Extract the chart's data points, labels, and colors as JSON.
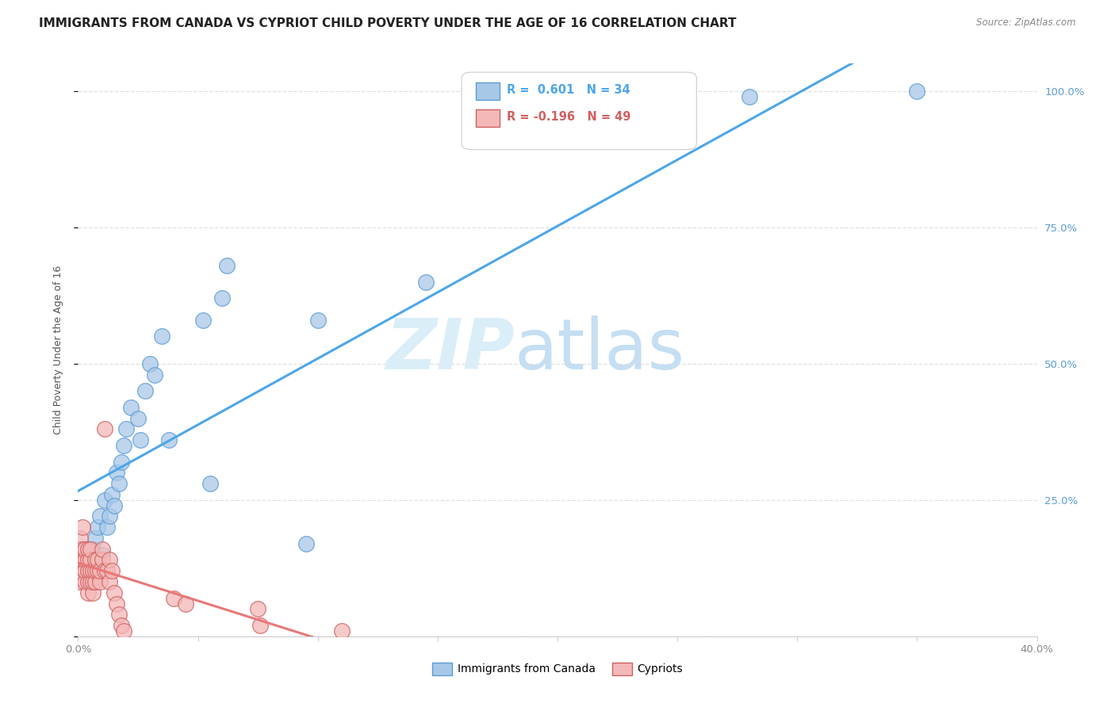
{
  "title": "IMMIGRANTS FROM CANADA VS CYPRIOT CHILD POVERTY UNDER THE AGE OF 16 CORRELATION CHART",
  "source": "Source: ZipAtlas.com",
  "ylabel": "Child Poverty Under the Age of 16",
  "xmin": 0.0,
  "xmax": 0.4,
  "ymin": 0.0,
  "ymax": 1.05,
  "ytick_positions": [
    0.0,
    0.25,
    0.5,
    0.75,
    1.0
  ],
  "ytick_labels_right": [
    "",
    "25.0%",
    "50.0%",
    "75.0%",
    "100.0%"
  ],
  "xtick_positions": [
    0.0,
    0.05,
    0.1,
    0.15,
    0.2,
    0.25,
    0.3,
    0.35,
    0.4
  ],
  "xtick_labels": [
    "0.0%",
    "",
    "",
    "",
    "",
    "",
    "",
    "",
    "40.0%"
  ],
  "blue_R": 0.601,
  "blue_N": 34,
  "pink_R": -0.196,
  "pink_N": 49,
  "blue_label": "Immigrants from Canada",
  "pink_label": "Cypriots",
  "blue_face_color": "#a8c8e8",
  "blue_edge_color": "#5b9bd5",
  "pink_face_color": "#f4b8b8",
  "pink_edge_color": "#d06060",
  "blue_line_color": "#4da6e8",
  "pink_line_color": "#e87878",
  "blue_scatter_x": [
    0.004,
    0.005,
    0.006,
    0.007,
    0.008,
    0.009,
    0.01,
    0.011,
    0.012,
    0.013,
    0.014,
    0.015,
    0.016,
    0.017,
    0.018,
    0.019,
    0.02,
    0.022,
    0.025,
    0.026,
    0.028,
    0.03,
    0.032,
    0.035,
    0.038,
    0.052,
    0.055,
    0.06,
    0.062,
    0.095,
    0.1,
    0.145,
    0.28,
    0.35
  ],
  "blue_scatter_y": [
    0.14,
    0.12,
    0.16,
    0.18,
    0.2,
    0.22,
    0.15,
    0.25,
    0.2,
    0.22,
    0.26,
    0.24,
    0.3,
    0.28,
    0.32,
    0.35,
    0.38,
    0.42,
    0.4,
    0.36,
    0.45,
    0.5,
    0.48,
    0.55,
    0.36,
    0.58,
    0.28,
    0.62,
    0.68,
    0.17,
    0.58,
    0.65,
    0.99,
    1.0
  ],
  "pink_scatter_x": [
    0.0,
    0.0,
    0.001,
    0.001,
    0.001,
    0.002,
    0.002,
    0.002,
    0.003,
    0.003,
    0.003,
    0.003,
    0.004,
    0.004,
    0.004,
    0.004,
    0.004,
    0.005,
    0.005,
    0.005,
    0.005,
    0.006,
    0.006,
    0.006,
    0.007,
    0.007,
    0.007,
    0.008,
    0.008,
    0.009,
    0.009,
    0.01,
    0.01,
    0.011,
    0.011,
    0.012,
    0.013,
    0.013,
    0.014,
    0.015,
    0.016,
    0.017,
    0.018,
    0.019,
    0.04,
    0.045,
    0.075,
    0.076,
    0.11
  ],
  "pink_scatter_y": [
    0.12,
    0.14,
    0.1,
    0.16,
    0.18,
    0.14,
    0.16,
    0.2,
    0.1,
    0.12,
    0.14,
    0.16,
    0.08,
    0.1,
    0.12,
    0.14,
    0.16,
    0.1,
    0.12,
    0.14,
    0.16,
    0.08,
    0.1,
    0.12,
    0.1,
    0.12,
    0.14,
    0.12,
    0.14,
    0.1,
    0.12,
    0.14,
    0.16,
    0.12,
    0.38,
    0.12,
    0.1,
    0.14,
    0.12,
    0.08,
    0.06,
    0.04,
    0.02,
    0.01,
    0.07,
    0.06,
    0.05,
    0.02,
    0.01
  ],
  "bg_color": "#ffffff",
  "grid_color": "#e0e0e0",
  "title_color": "#222222",
  "source_color": "#888888",
  "ylabel_color": "#555555",
  "tick_color": "#888888",
  "right_tick_color": "#5b9bd5"
}
